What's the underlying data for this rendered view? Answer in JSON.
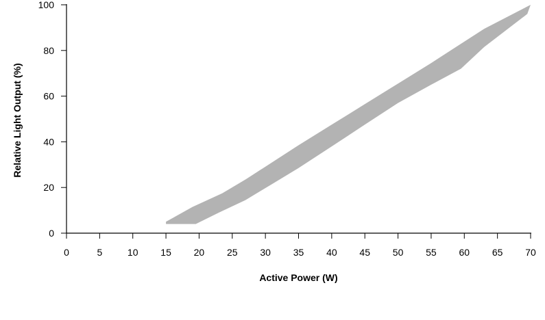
{
  "chart_data": {
    "type": "area",
    "title": "",
    "xlabel": "Active Power (W)",
    "ylabel": "Relative Light Output (%)",
    "xlim": [
      0,
      70
    ],
    "ylim": [
      0,
      100
    ],
    "x_ticks": [
      "0",
      "5",
      "10",
      "15",
      "20",
      "25",
      "30",
      "35",
      "40",
      "45",
      "50",
      "55",
      "60",
      "65",
      "70"
    ],
    "y_ticks": [
      "0",
      "20",
      "40",
      "60",
      "80",
      "100"
    ],
    "grid": false,
    "legend": "none",
    "band_color": "#b3b3b3",
    "series": [
      {
        "upper": {
          "x": [
            15,
            19,
            23.5,
            27,
            31,
            35,
            40,
            45,
            50,
            55,
            59,
            63,
            70
          ],
          "y": [
            5,
            11.5,
            17.5,
            23.5,
            31,
            38.5,
            47.5,
            56.5,
            65.5,
            74.5,
            82,
            89.5,
            100
          ]
        },
        "lower": {
          "x": [
            15,
            19.5,
            23,
            27,
            31,
            35,
            40,
            45,
            50,
            55,
            59.5,
            63,
            69.5,
            70
          ],
          "y": [
            4,
            4,
            9,
            14.5,
            21.5,
            28.5,
            38,
            47.5,
            57,
            65,
            72,
            81.5,
            96,
            100
          ]
        }
      }
    ]
  }
}
